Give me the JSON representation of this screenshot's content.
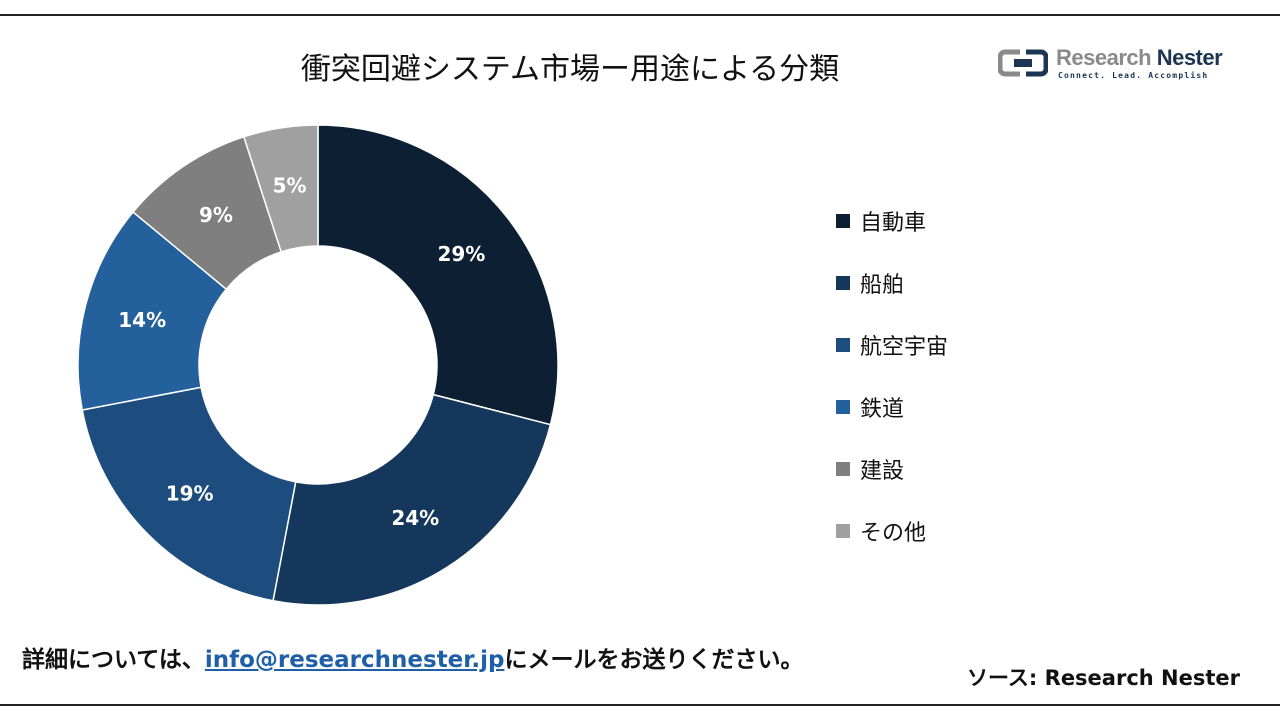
{
  "title": "衝突回避システム市場ー用途による分類",
  "logo": {
    "name_part1": "Research",
    "name_part2": "Nester",
    "tagline": "Connect. Lead. Accomplish"
  },
  "chart_data": {
    "type": "pie",
    "subtype": "donut",
    "title": "衝突回避システム市場ー用途による分類",
    "categories": [
      "自動車",
      "船舶",
      "航空宇宙",
      "鉄道",
      "建設",
      "その他"
    ],
    "values": [
      29,
      24,
      19,
      14,
      9,
      5
    ],
    "labels": [
      "29%",
      "24%",
      "19%",
      "14%",
      "9%",
      "5%"
    ],
    "colors": [
      "#0d1f33",
      "#15375c",
      "#1c4d7e",
      "#23609c",
      "#7f7f7f",
      "#a0a0a0"
    ],
    "legend_position": "right"
  },
  "footer": {
    "prefix": "詳細については、",
    "email": "info@researchnester.jp",
    "suffix": "にメールをお送りください。"
  },
  "source": "ソース: Research Nester"
}
